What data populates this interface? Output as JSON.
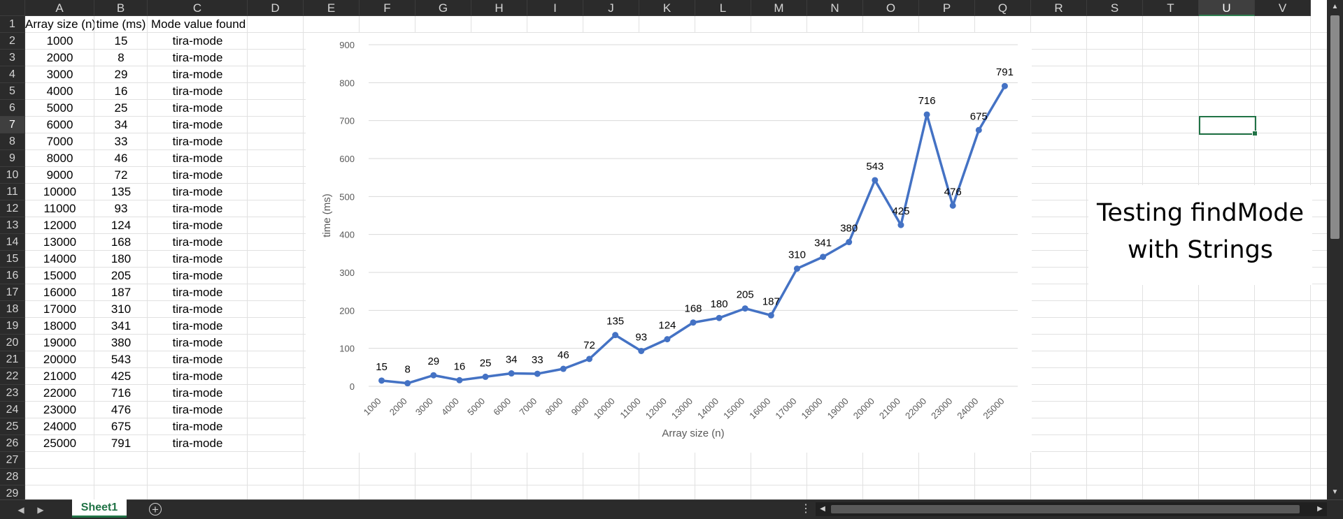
{
  "columns": [
    "A",
    "B",
    "C",
    "D",
    "E",
    "F",
    "G",
    "H",
    "I",
    "J",
    "K",
    "L",
    "M",
    "N",
    "O",
    "P",
    "Q",
    "R",
    "S",
    "T",
    "U",
    "V"
  ],
  "rows": [
    "1",
    "2",
    "3",
    "4",
    "5",
    "6",
    "7",
    "8",
    "9",
    "10",
    "11",
    "12",
    "13",
    "14",
    "15",
    "16",
    "17",
    "18",
    "19",
    "20",
    "21",
    "22",
    "23",
    "24",
    "25",
    "26",
    "27",
    "28",
    "29"
  ],
  "selected_column": "U",
  "selected_row": "7",
  "table": {
    "headers": [
      "Array size (n)",
      "time (ms)",
      "Mode value found"
    ],
    "rows": [
      [
        "1000",
        "15",
        "tira-mode"
      ],
      [
        "2000",
        "8",
        "tira-mode"
      ],
      [
        "3000",
        "29",
        "tira-mode"
      ],
      [
        "4000",
        "16",
        "tira-mode"
      ],
      [
        "5000",
        "25",
        "tira-mode"
      ],
      [
        "6000",
        "34",
        "tira-mode"
      ],
      [
        "7000",
        "33",
        "tira-mode"
      ],
      [
        "8000",
        "46",
        "tira-mode"
      ],
      [
        "9000",
        "72",
        "tira-mode"
      ],
      [
        "10000",
        "135",
        "tira-mode"
      ],
      [
        "11000",
        "93",
        "tira-mode"
      ],
      [
        "12000",
        "124",
        "tira-mode"
      ],
      [
        "13000",
        "168",
        "tira-mode"
      ],
      [
        "14000",
        "180",
        "tira-mode"
      ],
      [
        "15000",
        "205",
        "tira-mode"
      ],
      [
        "16000",
        "187",
        "tira-mode"
      ],
      [
        "17000",
        "310",
        "tira-mode"
      ],
      [
        "18000",
        "341",
        "tira-mode"
      ],
      [
        "19000",
        "380",
        "tira-mode"
      ],
      [
        "20000",
        "543",
        "tira-mode"
      ],
      [
        "21000",
        "425",
        "tira-mode"
      ],
      [
        "22000",
        "716",
        "tira-mode"
      ],
      [
        "23000",
        "476",
        "tira-mode"
      ],
      [
        "24000",
        "675",
        "tira-mode"
      ],
      [
        "25000",
        "791",
        "tira-mode"
      ]
    ]
  },
  "chart_data": {
    "type": "line",
    "title": "",
    "xlabel": "Array size (n)",
    "ylabel": "time (ms)",
    "categories": [
      "1000",
      "2000",
      "3000",
      "4000",
      "5000",
      "6000",
      "7000",
      "8000",
      "9000",
      "10000",
      "11000",
      "12000",
      "13000",
      "14000",
      "15000",
      "16000",
      "17000",
      "18000",
      "19000",
      "20000",
      "21000",
      "22000",
      "23000",
      "24000",
      "25000"
    ],
    "values": [
      15,
      8,
      29,
      16,
      25,
      34,
      33,
      46,
      72,
      135,
      93,
      124,
      168,
      180,
      205,
      187,
      310,
      341,
      380,
      543,
      425,
      716,
      476,
      675,
      791
    ],
    "ylim": [
      0,
      900
    ],
    "yticks": [
      0,
      100,
      200,
      300,
      400,
      500,
      600,
      700,
      800,
      900
    ],
    "grid": true,
    "data_labels": true,
    "line_color": "#4472c4",
    "gridline_color": "#d9d9d9"
  },
  "textbox": {
    "line1": "Testing findMode",
    "line2": "with Strings"
  },
  "sheet_tabs": [
    {
      "label": "Sheet1",
      "active": true
    }
  ],
  "colors": {
    "accent": "#217346",
    "header_bg": "#2b2b2b",
    "gridline": "#e1e1e1"
  },
  "icons": {
    "nav_prev": "chevron-left-icon",
    "nav_next": "chevron-right-icon",
    "add_sheet": "plus-circle-icon",
    "options": "vertical-dots-icon"
  }
}
